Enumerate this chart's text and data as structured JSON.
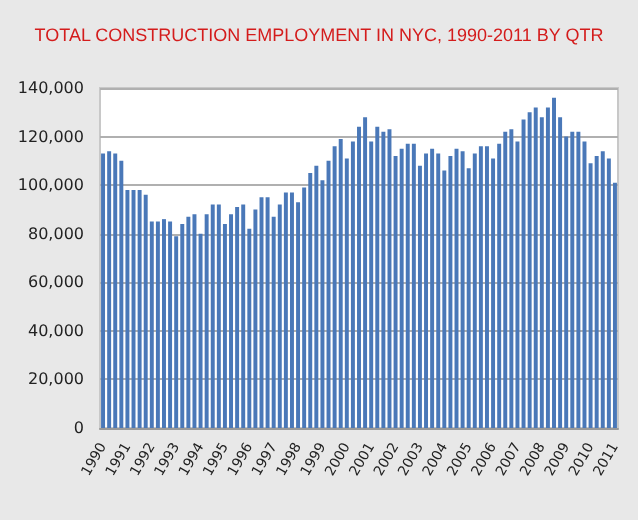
{
  "chart_data": {
    "type": "bar",
    "title": "TOTAL CONSTRUCTION EMPLOYMENT IN NYC, 1990-2011 BY QTR",
    "categories": [
      "1990",
      null,
      null,
      null,
      "1991",
      null,
      null,
      null,
      "1992",
      null,
      null,
      null,
      "1993",
      null,
      null,
      null,
      "1994",
      null,
      null,
      null,
      "1995",
      null,
      null,
      null,
      "1996",
      null,
      null,
      null,
      "1997",
      null,
      null,
      null,
      "1998",
      null,
      null,
      null,
      "1999",
      null,
      null,
      null,
      "2000",
      null,
      null,
      null,
      "2001",
      null,
      null,
      null,
      "2002",
      null,
      null,
      null,
      "2003",
      null,
      null,
      null,
      "2004",
      null,
      null,
      null,
      "2005",
      null,
      null,
      null,
      "2006",
      null,
      null,
      null,
      "2007",
      null,
      null,
      null,
      "2008",
      null,
      null,
      null,
      "2009",
      null,
      null,
      null,
      "2010",
      null,
      null,
      null,
      "2011"
    ],
    "values": [
      113000,
      114000,
      113000,
      110000,
      98000,
      98000,
      98000,
      96000,
      85000,
      85000,
      86000,
      85000,
      79000,
      84000,
      87000,
      88000,
      80000,
      88000,
      92000,
      92000,
      84000,
      88000,
      91000,
      92000,
      82000,
      90000,
      95000,
      95000,
      87000,
      92000,
      97000,
      97000,
      93000,
      99000,
      105000,
      108000,
      102000,
      110000,
      116000,
      119000,
      111000,
      118000,
      124000,
      128000,
      118000,
      124000,
      122000,
      123000,
      112000,
      115000,
      117000,
      117000,
      108000,
      113000,
      115000,
      113000,
      106000,
      112000,
      115000,
      114000,
      107000,
      113000,
      116000,
      116000,
      111000,
      117000,
      122000,
      123000,
      118000,
      127000,
      130000,
      132000,
      128000,
      132000,
      136000,
      128000,
      120000,
      122000,
      122000,
      118000,
      109000,
      112000,
      114000,
      111000,
      101000
    ],
    "color": "#4a78b8",
    "ylim": [
      0,
      140000
    ],
    "yticks": [
      0,
      {
        "value": 20000,
        "label": "20,000"
      },
      {
        "value": 40000,
        "label": "40,000"
      },
      {
        "value": 60000,
        "label": "60,000"
      },
      {
        "value": 80000,
        "label": "80,000"
      },
      {
        "value": 100000,
        "label": "100,000"
      },
      {
        "value": 120000,
        "label": "120,000"
      },
      {
        "value": 140000,
        "label": "140,000"
      }
    ],
    "grid": "y"
  }
}
